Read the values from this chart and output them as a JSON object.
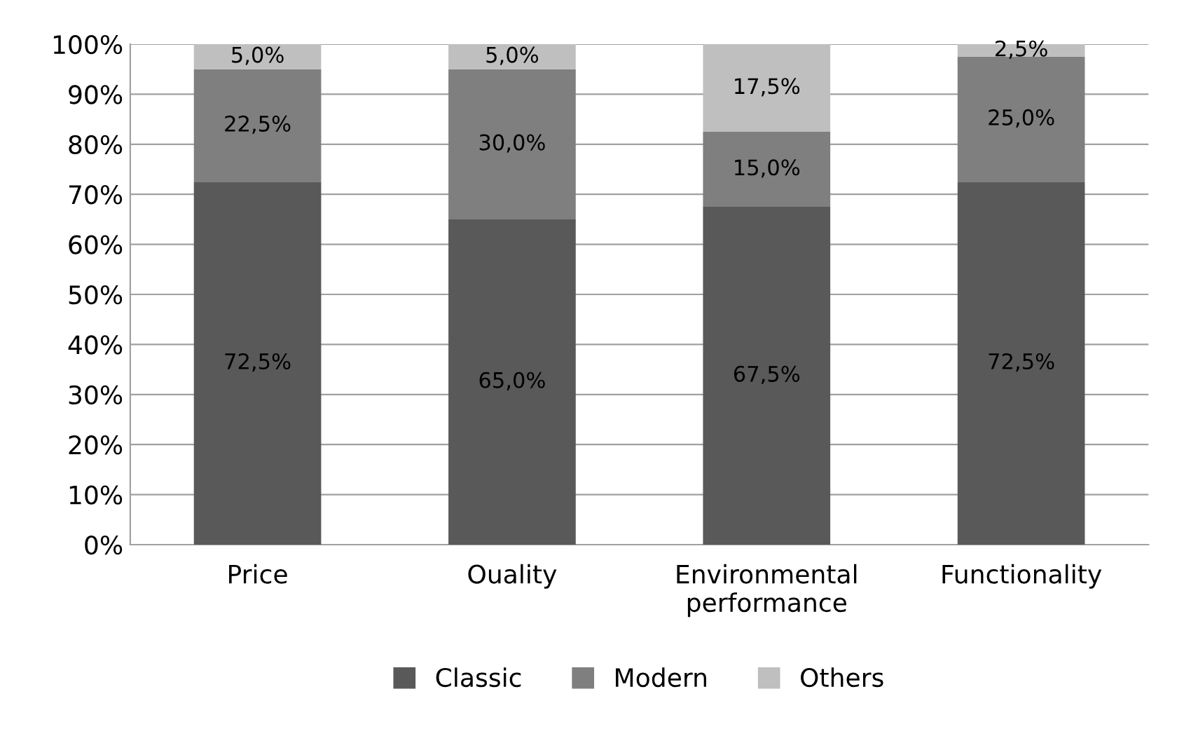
{
  "chart_data": {
    "type": "bar",
    "stacked": true,
    "categories": [
      "Price",
      "Ouality",
      "Environmental\nperformance",
      "Functionality"
    ],
    "series": [
      {
        "name": "Classic",
        "color": "#595959",
        "values": [
          72.5,
          65.0,
          67.5,
          72.5
        ],
        "value_labels": [
          "72,5%",
          "65,0%",
          "67,5%",
          "72,5%"
        ]
      },
      {
        "name": "Modern",
        "color": "#7f7f7f",
        "values": [
          22.5,
          30.0,
          15.0,
          25.0
        ],
        "value_labels": [
          "22,5%",
          "30,0%",
          "15,0%",
          "25,0%"
        ]
      },
      {
        "name": "Others",
        "color": "#bfbfbf",
        "values": [
          5.0,
          5.0,
          17.5,
          2.5
        ],
        "value_labels": [
          "5,0%",
          "5,0%",
          "17,5%",
          "2,5%"
        ]
      }
    ],
    "ylim": [
      0,
      100
    ],
    "yticks": [
      {
        "value": 0,
        "label": "0%"
      },
      {
        "value": 10,
        "label": "10%"
      },
      {
        "value": 20,
        "label": "20%"
      },
      {
        "value": 30,
        "label": "30%"
      },
      {
        "value": 40,
        "label": "40%"
      },
      {
        "value": 50,
        "label": "50%"
      },
      {
        "value": 60,
        "label": "60%"
      },
      {
        "value": 70,
        "label": "70%"
      },
      {
        "value": 80,
        "label": "80%"
      },
      {
        "value": 90,
        "label": "90%"
      },
      {
        "value": 100,
        "label": "100%"
      }
    ],
    "grid": "y",
    "legend": "bottom"
  }
}
